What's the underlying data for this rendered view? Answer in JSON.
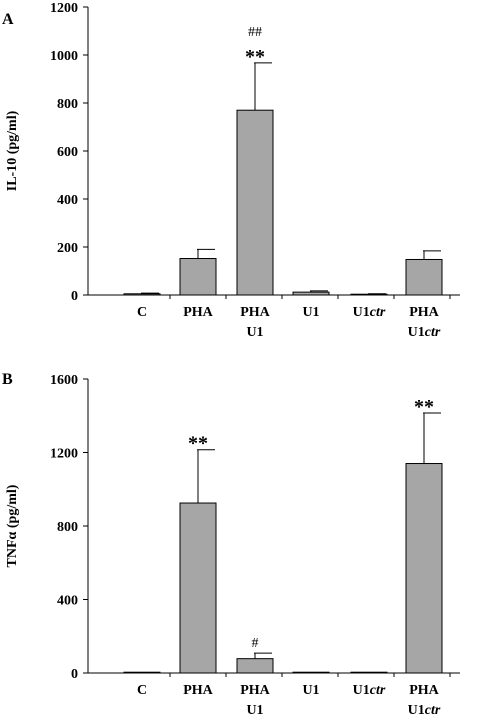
{
  "chart_data": [
    {
      "type": "bar",
      "panel_label": "A",
      "ylabel": "IL-10 (pg/ml)",
      "ylim": [
        0,
        1200
      ],
      "yticks": [
        "0",
        "200",
        "400",
        "600",
        "800",
        "1000",
        "1200"
      ],
      "categories": [
        {
          "line1": "C",
          "line2": ""
        },
        {
          "line1": "PHA",
          "line2": ""
        },
        {
          "line1": "PHA",
          "line2": "U1"
        },
        {
          "line1": "U1",
          "line2": ""
        },
        {
          "line1": "U1",
          "line1_italic": "ctr",
          "line2": ""
        },
        {
          "line1": "PHA",
          "line2": "U1",
          "line2_italic": "ctr"
        }
      ],
      "values": [
        5,
        152,
        770,
        12,
        3,
        148
      ],
      "errors": [
        3,
        38,
        197,
        5,
        2,
        36
      ],
      "annotations": [
        {
          "index": 2,
          "stars": "**",
          "hashes": "##"
        }
      ],
      "bar_color": "#a6a6a6"
    },
    {
      "type": "bar",
      "panel_label": "B",
      "ylabel": "TNFα (pg/ml)",
      "ylim": [
        0,
        1600
      ],
      "yticks": [
        "0",
        "400",
        "800",
        "1200",
        "1600"
      ],
      "categories": [
        {
          "line1": "C",
          "line2": ""
        },
        {
          "line1": "PHA",
          "line2": ""
        },
        {
          "line1": "PHA",
          "line2": "U1"
        },
        {
          "line1": "U1",
          "line2": ""
        },
        {
          "line1": "U1",
          "line1_italic": "ctr",
          "line2": ""
        },
        {
          "line1": "PHA",
          "line2": "U1",
          "line2_italic": "ctr"
        }
      ],
      "values": [
        1,
        925,
        78,
        2,
        1,
        1140
      ],
      "errors": [
        0,
        290,
        30,
        0,
        0,
        275
      ],
      "annotations": [
        {
          "index": 1,
          "stars": "**",
          "hashes": ""
        },
        {
          "index": 2,
          "stars": "",
          "hashes": "#"
        },
        {
          "index": 5,
          "stars": "**",
          "hashes": ""
        }
      ],
      "bar_color": "#a6a6a6"
    }
  ]
}
